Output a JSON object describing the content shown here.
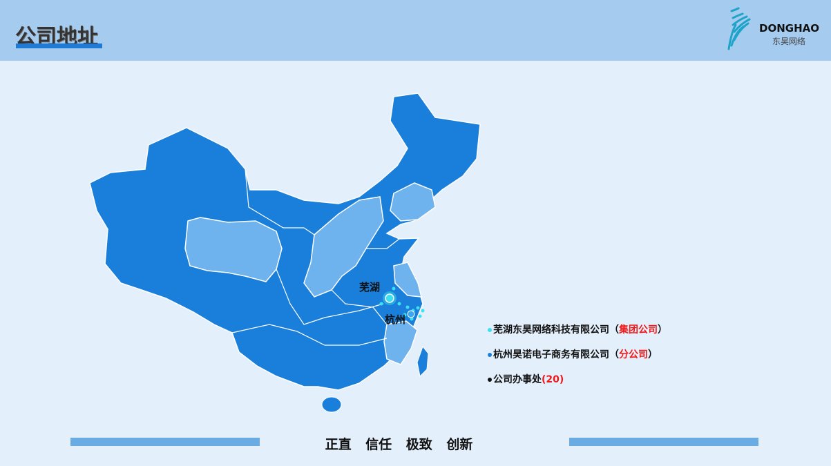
{
  "header": {
    "title": "公司地址",
    "logo_en": "DONGHAO",
    "logo_cn": "东昊网络"
  },
  "map": {
    "cities": [
      {
        "name": "芜湖",
        "color": "#3de0f0"
      },
      {
        "name": "杭州",
        "color": "#3aa8f0"
      }
    ],
    "colors": {
      "province_dark": "#1a7fda",
      "province_light": "#6eb2ee"
    }
  },
  "legend": [
    {
      "text": "芜湖东昊网络科技有限公司（",
      "tag": "集团公司",
      "end": "）",
      "dot_color": "#3de0f0"
    },
    {
      "text": "杭州昊诺电子商务有限公司（",
      "tag": "分公司",
      "end": "）",
      "dot_color": "#1a7fda"
    },
    {
      "text": "公司办事处",
      "tag": "(20)",
      "end": "",
      "dot_color": "#111111"
    }
  ],
  "footer": {
    "motto": "正直 信任 极致 创新"
  }
}
